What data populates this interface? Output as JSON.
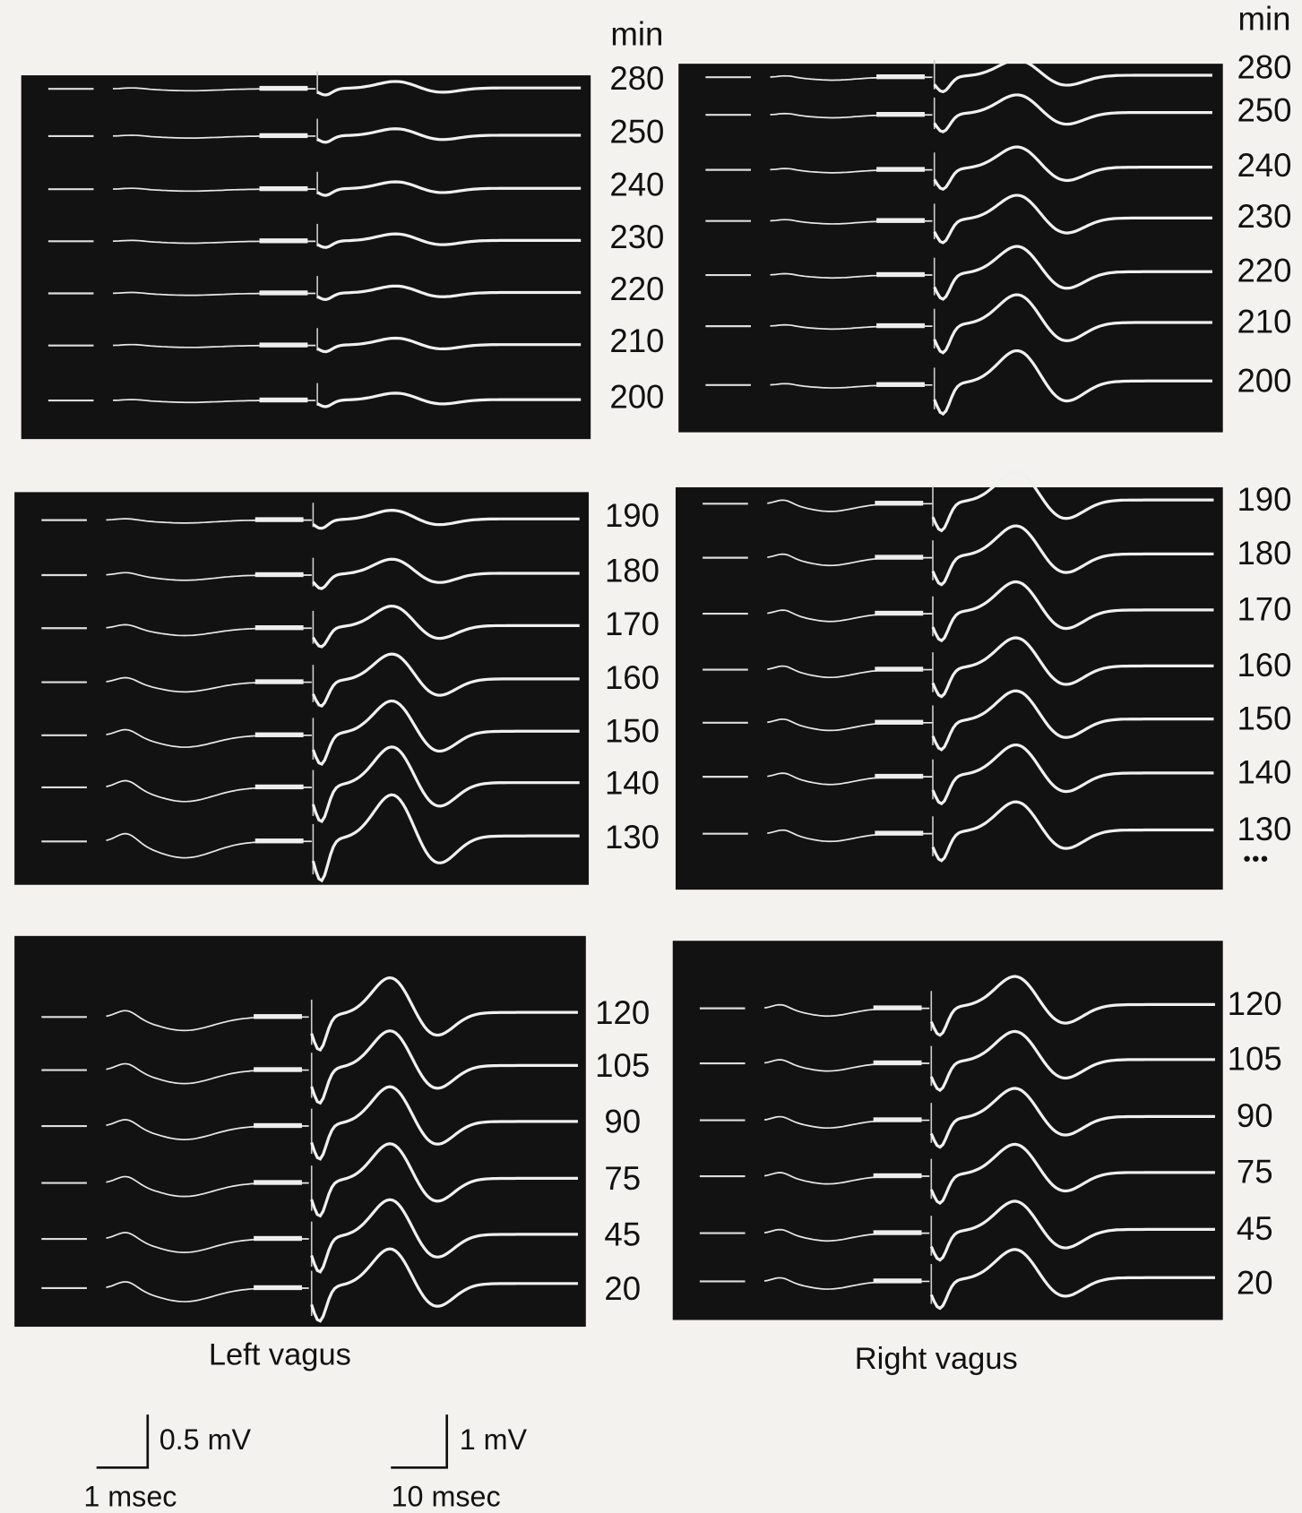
{
  "panels": [
    {
      "caption": "Left vagus",
      "groups": [
        {
          "unit": "min",
          "labels": [
            "280",
            "250",
            "240",
            "230",
            "220",
            "210",
            "200"
          ]
        },
        {
          "labels": [
            "190",
            "180",
            "170",
            "160",
            "150",
            "140",
            "130"
          ]
        },
        {
          "labels": [
            "120",
            "105",
            "90",
            "75",
            "45",
            "20"
          ]
        }
      ]
    },
    {
      "caption": "Right vagus",
      "groups": [
        {
          "unit": "min",
          "labels": [
            "280",
            "250",
            "240",
            "230",
            "220",
            "210",
            "200"
          ]
        },
        {
          "labels": [
            "190",
            "180",
            "170",
            "160",
            "150",
            "140",
            "130"
          ]
        },
        {
          "labels": [
            "120",
            "105",
            "90",
            "75",
            "45",
            "20"
          ]
        }
      ]
    }
  ],
  "scale_bars": [
    {
      "vertical": "0.5 mV",
      "horizontal": "1 msec"
    },
    {
      "vertical": "1 mV",
      "horizontal": "10 msec"
    }
  ]
}
